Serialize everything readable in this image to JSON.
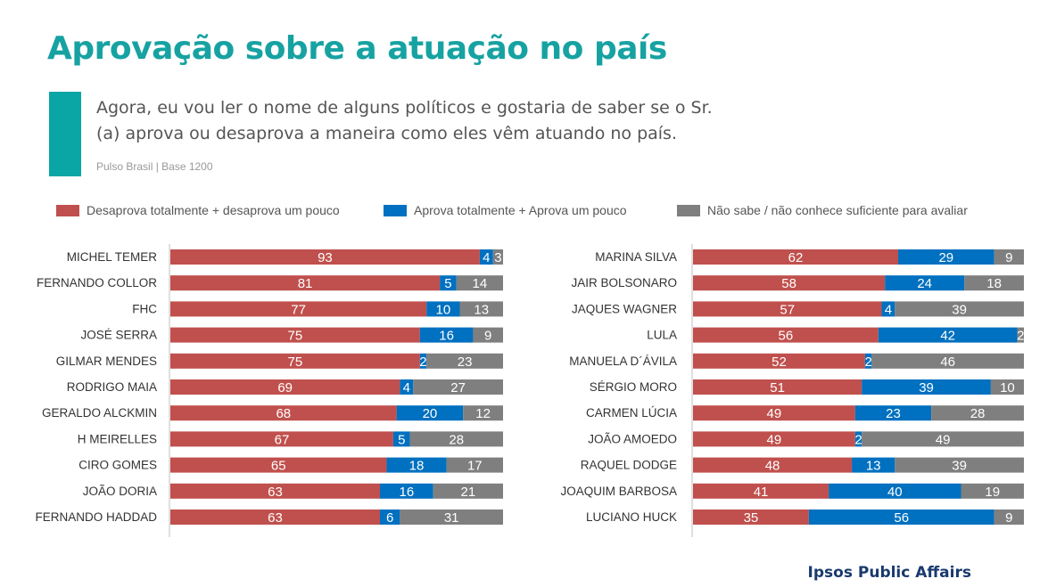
{
  "title": "Aprovação sobre a atuação no país",
  "question": "Agora, eu vou ler o nome de alguns políticos e gostaria de saber se o Sr.(a) aprova ou desaprova a maneira como eles vêm atuando no país.",
  "source": "Pulso Brasil | Base 1200",
  "brand": "Ipsos Public Affairs",
  "legend": [
    {
      "label": "Desaprova totalmente + desaprova um pouco",
      "color": "#c0504d"
    },
    {
      "label": "Aprova totalmente + Aprova um pouco",
      "color": "#0070c0"
    },
    {
      "label": "Não sabe / não conhece suficiente para avaliar",
      "color": "#7f7f7f"
    }
  ],
  "chart_data": [
    {
      "type": "bar",
      "stacked": true,
      "orientation": "horizontal",
      "categories": [
        "MICHEL TEMER",
        "FERNANDO COLLOR",
        "FHC",
        "JOSÉ SERRA",
        "GILMAR MENDES",
        "RODRIGO MAIA",
        "GERALDO ALCKMIN",
        "H MEIRELLES",
        "CIRO GOMES",
        "JOÃO DORIA",
        "FERNANDO HADDAD"
      ],
      "series": [
        {
          "name": "Desaprova totalmente + desaprova um pouco",
          "values": [
            93,
            81,
            77,
            75,
            75,
            69,
            68,
            67,
            65,
            63,
            63
          ]
        },
        {
          "name": "Aprova totalmente + Aprova um pouco",
          "values": [
            4,
            5,
            10,
            16,
            2,
            4,
            20,
            5,
            18,
            16,
            6
          ]
        },
        {
          "name": "Não sabe / não conhece suficiente para avaliar",
          "values": [
            3,
            14,
            13,
            9,
            23,
            27,
            12,
            28,
            17,
            21,
            31
          ]
        }
      ],
      "xlim": [
        0,
        100
      ]
    },
    {
      "type": "bar",
      "stacked": true,
      "orientation": "horizontal",
      "categories": [
        "MARINA SILVA",
        "JAIR BOLSONARO",
        "JAQUES WAGNER",
        "LULA",
        "MANUELA D´ÁVILA",
        "SÉRGIO MORO",
        "CARMEN LÚCIA",
        "JOÃO AMOEDO",
        "RAQUEL DODGE",
        "JOAQUIM BARBOSA",
        "LUCIANO HUCK"
      ],
      "series": [
        {
          "name": "Desaprova totalmente + desaprova um pouco",
          "values": [
            62,
            58,
            57,
            56,
            52,
            51,
            49,
            49,
            48,
            41,
            35
          ]
        },
        {
          "name": "Aprova totalmente + Aprova um pouco",
          "values": [
            29,
            24,
            4,
            42,
            2,
            39,
            23,
            2,
            13,
            40,
            56
          ]
        },
        {
          "name": "Não sabe / não conhece suficiente para avaliar",
          "values": [
            9,
            18,
            39,
            2,
            46,
            10,
            28,
            49,
            39,
            19,
            9
          ]
        }
      ],
      "xlim": [
        0,
        100
      ]
    }
  ]
}
